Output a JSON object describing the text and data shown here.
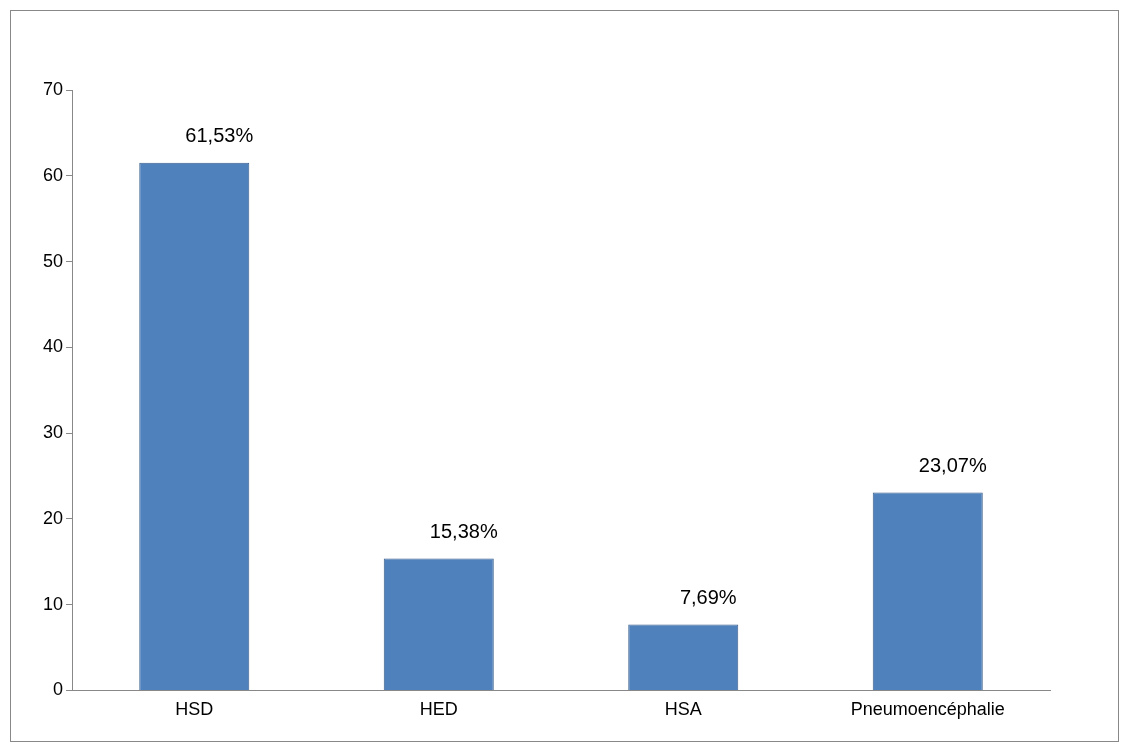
{
  "chart_data": {
    "type": "bar",
    "categories": [
      "HSD",
      "HED",
      "HSA",
      "Pneumoencéphalie"
    ],
    "values": [
      61.53,
      15.38,
      7.69,
      23.07
    ],
    "value_labels": [
      "61,53%",
      "15,38%",
      "7,69%",
      "23,07%"
    ],
    "color": "#4f81bd",
    "ylim": [
      0,
      70
    ],
    "yticks": [
      0,
      10,
      20,
      30,
      40,
      50,
      60,
      70
    ],
    "grid": false,
    "legend": false
  }
}
